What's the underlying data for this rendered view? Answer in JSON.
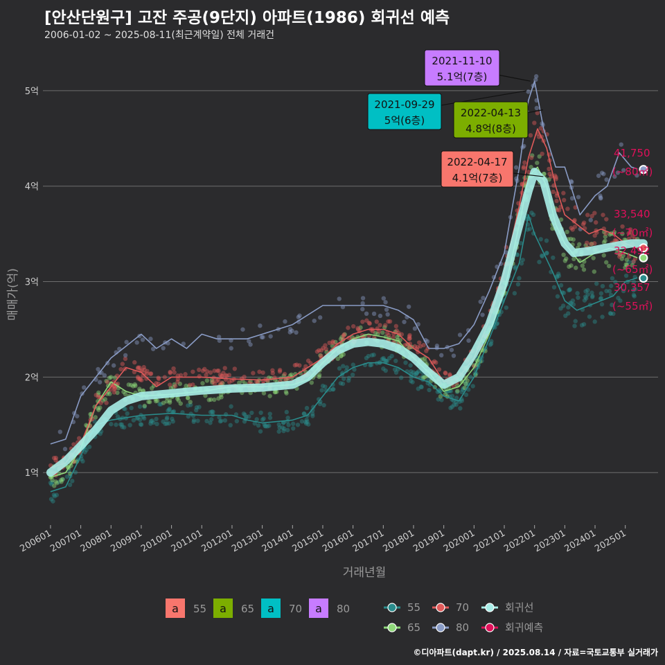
{
  "title": "[안산단원구] 고잔 주공(9단지) 아파트(1986) 회귀선 예측",
  "subtitle": "2006-01-02 ~ 2025-08-11(최근계약일) 전체 거래건",
  "caption": "©디아파트(dapt.kr) / 2025.08.14 / 자료=국토교통부 실거래가",
  "colors": {
    "background": "#2b2b2d",
    "grid": "#6e6e6e",
    "s55": "#f8766d",
    "s65": "#7cae00",
    "s70": "#00bfc4",
    "s80": "#c77cff",
    "pt55": "#2a8c8c",
    "pt65": "#8fd97a",
    "pt70": "#e05a5a",
    "pt80": "#8a9cc6",
    "regression": "#a8eee8",
    "forecast": "#e0105a"
  },
  "chart_data": {
    "type": "line",
    "xlabel": "거래년월",
    "ylabel": "매매가(억)",
    "x_ticks": [
      "200601",
      "200701",
      "200801",
      "200901",
      "201001",
      "201101",
      "201201",
      "201301",
      "201401",
      "201501",
      "201601",
      "201701",
      "201801",
      "201901",
      "202001",
      "202101",
      "202201",
      "202301",
      "202401",
      "202501"
    ],
    "xlim": [
      "2005-10",
      "2026-02"
    ],
    "y_ticks": [
      {
        "value": 1,
        "label": "1억"
      },
      {
        "value": 2,
        "label": "2억"
      },
      {
        "value": 3,
        "label": "3억"
      },
      {
        "value": 4,
        "label": "4억"
      },
      {
        "value": 5,
        "label": "5억"
      }
    ],
    "ylim": [
      0.45,
      5.5
    ],
    "grid": true,
    "series": [
      {
        "name": "55",
        "color_key": "pt55",
        "x": [
          2006.0,
          2006.5,
          2007.5,
          2008.0,
          2009.0,
          2010.0,
          2011.0,
          2012.0,
          2012.5,
          2013.0,
          2014.0,
          2014.5,
          2015.0,
          2015.5,
          2016.0,
          2016.5,
          2017.0,
          2017.5,
          2018.0,
          2018.5,
          2019.0,
          2019.5,
          2020.0,
          2020.5,
          2021.0,
          2021.5,
          2021.8,
          2022.0,
          2022.3,
          2022.6,
          2023.0,
          2023.4,
          2023.8,
          2024.2,
          2024.6,
          2025.0,
          2025.4
        ],
        "y": [
          0.8,
          0.85,
          1.5,
          1.55,
          1.6,
          1.62,
          1.6,
          1.6,
          1.55,
          1.52,
          1.55,
          1.6,
          1.8,
          2.0,
          2.1,
          2.15,
          2.15,
          2.1,
          2.0,
          1.95,
          1.8,
          1.75,
          2.0,
          2.4,
          2.8,
          3.2,
          3.7,
          3.5,
          3.3,
          3.1,
          2.8,
          2.7,
          2.75,
          2.8,
          2.85,
          3.0,
          3.04
        ]
      },
      {
        "name": "65",
        "color_key": "pt65",
        "x": [
          2006.0,
          2006.5,
          2007.0,
          2007.5,
          2008.0,
          2008.5,
          2009.0,
          2010.0,
          2011.0,
          2012.0,
          2013.0,
          2014.0,
          2014.5,
          2015.0,
          2015.5,
          2016.0,
          2016.5,
          2017.0,
          2017.5,
          2018.0,
          2018.5,
          2019.0,
          2019.5,
          2020.0,
          2020.5,
          2021.0,
          2021.5,
          2021.8,
          2022.1,
          2022.4,
          2022.7,
          2023.0,
          2023.5,
          2024.0,
          2024.5,
          2025.0,
          2025.4
        ],
        "y": [
          0.95,
          1.0,
          1.25,
          1.7,
          1.95,
          1.85,
          1.8,
          1.82,
          1.85,
          1.9,
          1.9,
          1.92,
          1.97,
          2.15,
          2.3,
          2.4,
          2.45,
          2.42,
          2.38,
          2.2,
          2.05,
          1.85,
          1.9,
          2.1,
          2.45,
          2.9,
          3.6,
          4.1,
          4.2,
          4.0,
          3.6,
          3.4,
          3.2,
          3.3,
          3.35,
          3.3,
          3.25
        ]
      },
      {
        "name": "70",
        "color_key": "pt70",
        "x": [
          2006.0,
          2006.5,
          2007.0,
          2007.5,
          2008.0,
          2008.5,
          2009.0,
          2009.5,
          2010.0,
          2011.0,
          2012.0,
          2013.0,
          2014.0,
          2015.0,
          2015.5,
          2016.0,
          2016.5,
          2017.0,
          2017.5,
          2018.0,
          2018.5,
          2019.0,
          2019.5,
          2020.0,
          2020.5,
          2021.0,
          2021.5,
          2021.8,
          2022.1,
          2022.4,
          2022.7,
          2023.0,
          2023.4,
          2023.8,
          2024.2,
          2024.6,
          2025.0,
          2025.4
        ],
        "y": [
          1.05,
          1.1,
          1.3,
          1.7,
          1.9,
          2.1,
          2.05,
          1.9,
          2.0,
          2.0,
          1.98,
          1.97,
          2.0,
          2.2,
          2.35,
          2.45,
          2.5,
          2.5,
          2.45,
          2.3,
          2.2,
          1.95,
          2.0,
          2.2,
          2.6,
          3.1,
          3.8,
          4.3,
          4.6,
          4.4,
          4.0,
          3.7,
          3.6,
          3.5,
          3.55,
          3.5,
          3.4,
          3.35
        ]
      },
      {
        "name": "80",
        "color_key": "pt80",
        "x": [
          2006.0,
          2006.5,
          2007.0,
          2007.5,
          2008.0,
          2009.0,
          2009.5,
          2010.0,
          2010.5,
          2011.0,
          2011.5,
          2012.0,
          2012.5,
          2013.0,
          2013.5,
          2014.0,
          2014.5,
          2015.0,
          2015.5,
          2016.0,
          2016.5,
          2017.0,
          2017.5,
          2018.0,
          2018.5,
          2019.0,
          2019.5,
          2020.0,
          2020.5,
          2021.0,
          2021.5,
          2021.8,
          2022.0,
          2022.3,
          2022.7,
          2023.0,
          2023.5,
          2024.0,
          2024.4,
          2024.8,
          2025.2,
          2025.4
        ],
        "y": [
          1.3,
          1.35,
          1.8,
          2.0,
          2.2,
          2.45,
          2.3,
          2.4,
          2.3,
          2.45,
          2.4,
          2.4,
          2.4,
          2.45,
          2.5,
          2.55,
          2.65,
          2.75,
          2.75,
          2.75,
          2.75,
          2.75,
          2.7,
          2.6,
          2.3,
          2.3,
          2.35,
          2.55,
          2.9,
          3.3,
          4.2,
          4.9,
          5.1,
          4.6,
          4.2,
          4.2,
          3.7,
          3.9,
          4.0,
          4.35,
          4.2,
          4.18
        ]
      },
      {
        "name": "회귀선",
        "color_key": "regression",
        "x": [
          2006.0,
          2006.5,
          2007.0,
          2007.5,
          2008.0,
          2008.5,
          2009.0,
          2010.0,
          2011.0,
          2012.0,
          2013.0,
          2014.0,
          2014.5,
          2015.0,
          2015.5,
          2016.0,
          2016.5,
          2017.0,
          2017.5,
          2018.0,
          2018.5,
          2019.0,
          2019.5,
          2020.0,
          2020.5,
          2021.0,
          2021.5,
          2021.8,
          2022.0,
          2022.3,
          2022.6,
          2023.0,
          2023.3,
          2023.8,
          2024.3,
          2024.8,
          2025.2,
          2025.6
        ],
        "y": [
          1.0,
          1.12,
          1.28,
          1.45,
          1.65,
          1.75,
          1.8,
          1.83,
          1.86,
          1.88,
          1.89,
          1.92,
          2.0,
          2.15,
          2.28,
          2.35,
          2.37,
          2.35,
          2.3,
          2.2,
          2.05,
          1.92,
          2.0,
          2.25,
          2.55,
          3.0,
          3.6,
          3.95,
          4.15,
          4.05,
          3.7,
          3.4,
          3.3,
          3.32,
          3.35,
          3.38,
          3.4,
          3.4
        ]
      }
    ],
    "forecast_points": [
      {
        "x": 2025.6,
        "y": 4.175,
        "label": "41,750",
        "area": "(~80㎡)",
        "color_key": "pt80"
      },
      {
        "x": 2025.6,
        "y": 3.354,
        "label": "33,540",
        "area": "(~70㎡)",
        "color_key": "pt70"
      },
      {
        "x": 2025.6,
        "y": 3.249,
        "label": "32,492",
        "area": "(~65㎡)",
        "color_key": "pt65"
      },
      {
        "x": 2025.6,
        "y": 3.036,
        "label": "30,357",
        "area": "(~55㎡)",
        "color_key": "pt55"
      }
    ],
    "annotations": [
      {
        "date": "2021-11-10",
        "price": "5.1억(7층)",
        "x": 2021.86,
        "y": 5.1,
        "color_key": "s80"
      },
      {
        "date": "2021-09-29",
        "price": "5억(6층)",
        "x": 2021.74,
        "y": 5.0,
        "color_key": "s70"
      },
      {
        "date": "2022-04-13",
        "price": "4.8억(8층)",
        "x": 2022.28,
        "y": 4.8,
        "color_key": "s65"
      },
      {
        "date": "2022-04-17",
        "price": "4.1억(7층)",
        "x": 2022.29,
        "y": 4.1,
        "color_key": "s55"
      }
    ],
    "legend_area": {
      "items": [
        {
          "glyph": "a",
          "label": "55",
          "color_key": "s55"
        },
        {
          "glyph": "a",
          "label": "65",
          "color_key": "s65"
        },
        {
          "glyph": "a",
          "label": "70",
          "color_key": "s70"
        },
        {
          "glyph": "a",
          "label": "80",
          "color_key": "s80"
        }
      ]
    },
    "legend_series": {
      "items": [
        {
          "label": "55",
          "color_key": "pt55"
        },
        {
          "label": "70",
          "color_key": "pt70"
        },
        {
          "label": "회귀선",
          "color_key": "regression"
        },
        {
          "label": "65",
          "color_key": "pt65"
        },
        {
          "label": "80",
          "color_key": "pt80"
        },
        {
          "label": "회귀예측",
          "color_key": "forecast"
        }
      ]
    },
    "legend_position": "bottom"
  }
}
